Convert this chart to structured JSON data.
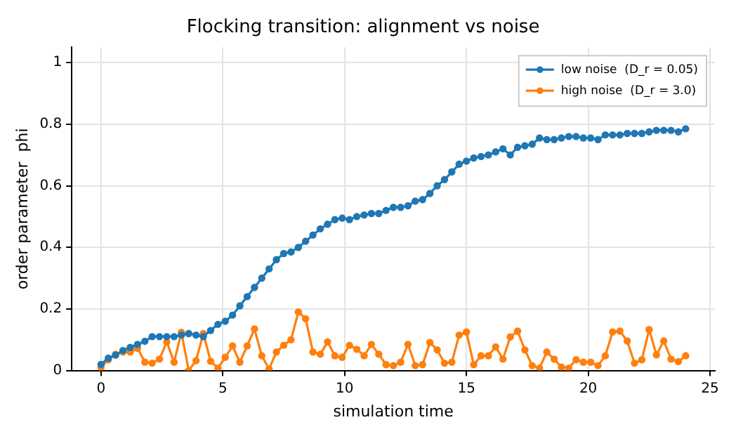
{
  "chart_data": {
    "type": "line",
    "title": "Flocking transition: alignment vs noise",
    "xlabel": "simulation time",
    "ylabel": "order parameter  phi",
    "x": [
      0,
      0.3,
      0.6,
      0.9,
      1.2,
      1.5,
      1.8,
      2.1,
      2.4,
      2.7,
      3,
      3.3,
      3.6,
      3.9,
      4.2,
      4.5,
      4.8,
      5.1,
      5.4,
      5.7,
      6,
      6.3,
      6.6,
      6.9,
      7.2,
      7.5,
      7.8,
      8.1,
      8.4,
      8.7,
      9,
      9.3,
      9.6,
      9.9,
      10.2,
      10.5,
      10.8,
      11.1,
      11.4,
      11.7,
      12,
      12.3,
      12.6,
      12.9,
      13.2,
      13.5,
      13.8,
      14.1,
      14.4,
      14.7,
      15,
      15.3,
      15.6,
      15.9,
      16.2,
      16.5,
      16.8,
      17.1,
      17.4,
      17.7,
      18,
      18.3,
      18.6,
      18.9,
      19.2,
      19.5,
      19.8,
      20.1,
      20.4,
      20.7,
      21,
      21.3,
      21.6,
      21.9,
      22.2,
      22.5,
      22.8,
      23.1,
      23.4,
      23.7,
      24
    ],
    "series": [
      {
        "name": "low noise  (D_r = 0.05)",
        "color": "#1f77b4",
        "values": [
          0.02,
          0.04,
          0.05,
          0.065,
          0.075,
          0.085,
          0.095,
          0.11,
          0.11,
          0.11,
          0.11,
          0.115,
          0.12,
          0.115,
          0.11,
          0.13,
          0.15,
          0.16,
          0.18,
          0.21,
          0.24,
          0.27,
          0.3,
          0.33,
          0.36,
          0.38,
          0.385,
          0.4,
          0.42,
          0.44,
          0.46,
          0.475,
          0.49,
          0.495,
          0.49,
          0.5,
          0.505,
          0.51,
          0.51,
          0.52,
          0.53,
          0.53,
          0.535,
          0.55,
          0.555,
          0.575,
          0.6,
          0.62,
          0.645,
          0.67,
          0.68,
          0.69,
          0.695,
          0.7,
          0.71,
          0.72,
          0.7,
          0.725,
          0.73,
          0.735,
          0.755,
          0.75,
          0.75,
          0.755,
          0.76,
          0.76,
          0.755,
          0.755,
          0.75,
          0.765,
          0.765,
          0.765,
          0.77,
          0.77,
          0.77,
          0.775,
          0.78,
          0.78,
          0.78,
          0.775,
          0.785
        ]
      },
      {
        "name": "high noise  (D_r = 3.0)",
        "color": "#ff7f0e",
        "values": [
          0.01,
          0.035,
          0.053,
          0.06,
          0.06,
          0.072,
          0.027,
          0.024,
          0.037,
          0.093,
          0.027,
          0.124,
          0.0,
          0.032,
          0.12,
          0.03,
          0.008,
          0.043,
          0.08,
          0.027,
          0.08,
          0.135,
          0.048,
          0.005,
          0.06,
          0.082,
          0.1,
          0.19,
          0.168,
          0.06,
          0.053,
          0.093,
          0.048,
          0.043,
          0.082,
          0.069,
          0.048,
          0.085,
          0.053,
          0.019,
          0.016,
          0.027,
          0.085,
          0.016,
          0.019,
          0.091,
          0.067,
          0.024,
          0.027,
          0.115,
          0.125,
          0.019,
          0.048,
          0.048,
          0.077,
          0.037,
          0.109,
          0.128,
          0.067,
          0.016,
          0.008,
          0.06,
          0.037,
          0.011,
          0.008,
          0.035,
          0.027,
          0.027,
          0.016,
          0.048,
          0.125,
          0.128,
          0.096,
          0.024,
          0.035,
          0.133,
          0.051,
          0.096,
          0.037,
          0.029,
          0.048
        ]
      }
    ],
    "xlim": [
      -1.2,
      25.2
    ],
    "xticks": [
      0,
      5,
      10,
      15,
      20,
      25
    ],
    "ylim": [
      0,
      1.05
    ],
    "yticks": [
      0,
      0.2,
      0.4,
      0.6,
      0.8,
      1
    ],
    "grid": true,
    "legend": "top right",
    "marker": "circle",
    "line_style": "solid"
  }
}
